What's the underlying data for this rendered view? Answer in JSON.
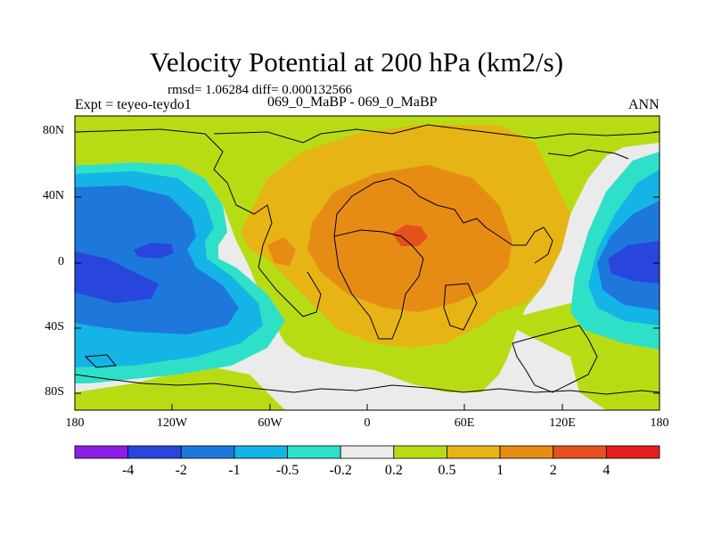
{
  "title": "Velocity Potential at 200 hPa (km2/s)",
  "stats": "rmsd= 1.06284 diff= 0.000132566",
  "experiment": "Expt = teyeo-teydo1",
  "case": "069_0_MaBP - 069_0_MaBP",
  "season": "ANN",
  "axes": {
    "y_ticks": [
      "80N",
      "40N",
      "0",
      "40S",
      "80S"
    ],
    "x_ticks": [
      "180",
      "120W",
      "60W",
      "0",
      "60E",
      "120E",
      "180"
    ]
  },
  "colorbar": {
    "labels": [
      "-4",
      "-2",
      "-1",
      "-0.5",
      "-0.2",
      "0.2",
      "0.5",
      "1",
      "2",
      "4"
    ],
    "colors": [
      "#8c1ee6",
      "#2846dc",
      "#1e78dc",
      "#14b4e6",
      "#2ee0c8",
      "#ebebeb",
      "#b8dc14",
      "#e6b414",
      "#e68c14",
      "#e6501e",
      "#e61e1e"
    ]
  },
  "field_colors": {
    "purple": "#8c1ee6",
    "deep_blue": "#2846dc",
    "blue": "#1e78dc",
    "light_blue": "#14b4e6",
    "cyan": "#2ee0c8",
    "grey": "#ebebeb",
    "lime": "#b8dc14",
    "gold": "#e6b414",
    "orange": "#e68c14",
    "dark_orange": "#e6501e",
    "red": "#e61e1e"
  }
}
